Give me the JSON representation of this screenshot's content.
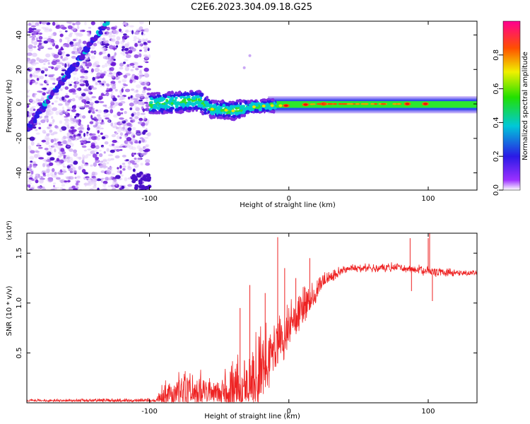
{
  "title": "C2E6.2023.304.09.18.G25",
  "chart_data": [
    {
      "type": "heatmap",
      "title": "C2E6.2023.304.09.18.G25",
      "xlabel": "Height of straight line (km)",
      "ylabel": "Frequency (Hz)",
      "xlim": [
        -188,
        135
      ],
      "ylim": [
        -50,
        48
      ],
      "xticks": [
        -100,
        0,
        100
      ],
      "xtick_labels": [
        "-100",
        "0",
        "100"
      ],
      "yticks": [
        -40,
        -20,
        0,
        20,
        40
      ],
      "ytick_labels": [
        "-40",
        "-20",
        "0",
        "20",
        "40"
      ],
      "noise_region_end_km": -100,
      "diagonal_trace": {
        "start": [
          -188,
          -15
        ],
        "end": [
          -130,
          48
        ]
      },
      "signal_band": {
        "center_hz": [
          {
            "x": -100,
            "y": 0
          },
          {
            "x": -80,
            "y": 1
          },
          {
            "x": -65,
            "y": 2
          },
          {
            "x": -55,
            "y": -3
          },
          {
            "x": -40,
            "y": -4
          },
          {
            "x": -30,
            "y": -2
          },
          {
            "x": -15,
            "y": -1
          },
          {
            "x": 0,
            "y": -1
          },
          {
            "x": 20,
            "y": 0
          },
          {
            "x": 60,
            "y": 0
          },
          {
            "x": 100,
            "y": 0
          },
          {
            "x": 135,
            "y": -1
          }
        ],
        "peak_locations_km": [
          -2,
          12,
          25,
          85,
          98
        ],
        "outlier_points": [
          {
            "x": -28,
            "y": 28
          },
          {
            "x": -32,
            "y": 21
          }
        ]
      },
      "colorbar": {
        "label": "Normalized spectral amplitude",
        "range": [
          0,
          1
        ],
        "ticks": [
          0.0,
          0.2,
          0.4,
          0.6,
          0.8
        ],
        "tick_labels": [
          "0.0",
          "0.2",
          "0.4",
          "0.6",
          "0.8"
        ]
      }
    },
    {
      "type": "line",
      "xlabel": "Height of straight line (km)",
      "ylabel": "SNR (10 * v/v)",
      "y_multiplier": "(x10⁴)",
      "xlim": [
        -188,
        135
      ],
      "ylim": [
        0,
        1.7
      ],
      "xticks": [
        -100,
        0,
        100
      ],
      "xtick_labels": [
        "-100",
        "0",
        "100"
      ],
      "yticks": [
        0.5,
        1.0,
        1.5
      ],
      "ytick_labels": [
        "0.5",
        "1.0",
        "1.5"
      ],
      "color": "#ee2222",
      "envelope": [
        {
          "x": -188,
          "base": 0.02,
          "amp": 0.02
        },
        {
          "x": -95,
          "base": 0.02,
          "amp": 0.03
        },
        {
          "x": -88,
          "base": 0.05,
          "amp": 0.28
        },
        {
          "x": -70,
          "base": 0.06,
          "amp": 0.3
        },
        {
          "x": -50,
          "base": 0.05,
          "amp": 0.3
        },
        {
          "x": -30,
          "base": 0.1,
          "amp": 0.5
        },
        {
          "x": -20,
          "base": 0.2,
          "amp": 0.7
        },
        {
          "x": -12,
          "base": 0.45,
          "amp": 0.5
        },
        {
          "x": 0,
          "base": 0.7,
          "amp": 0.4
        },
        {
          "x": 10,
          "base": 0.9,
          "amp": 0.35
        },
        {
          "x": 25,
          "base": 1.2,
          "amp": 0.12
        },
        {
          "x": 40,
          "base": 1.33,
          "amp": 0.07
        },
        {
          "x": 80,
          "base": 1.35,
          "amp": 0.07
        },
        {
          "x": 100,
          "base": 1.3,
          "amp": 0.08
        },
        {
          "x": 135,
          "base": 1.29,
          "amp": 0.04
        }
      ],
      "spikes": [
        {
          "x": -8,
          "y": 1.66
        },
        {
          "x": -28,
          "y": 1.18
        },
        {
          "x": 15,
          "y": 1.45
        },
        {
          "x": 87,
          "y": 1.65
        },
        {
          "x": 100,
          "y": 1.65
        },
        {
          "x": 101,
          "y": 1.72
        },
        {
          "x": 103,
          "y": 1.02
        },
        {
          "x": 88,
          "y": 1.12
        },
        {
          "x": -35,
          "y": 0.95
        },
        {
          "x": -17,
          "y": 1.1
        },
        {
          "x": -3,
          "y": 1.35
        },
        {
          "x": 5,
          "y": 1.25
        }
      ]
    }
  ]
}
